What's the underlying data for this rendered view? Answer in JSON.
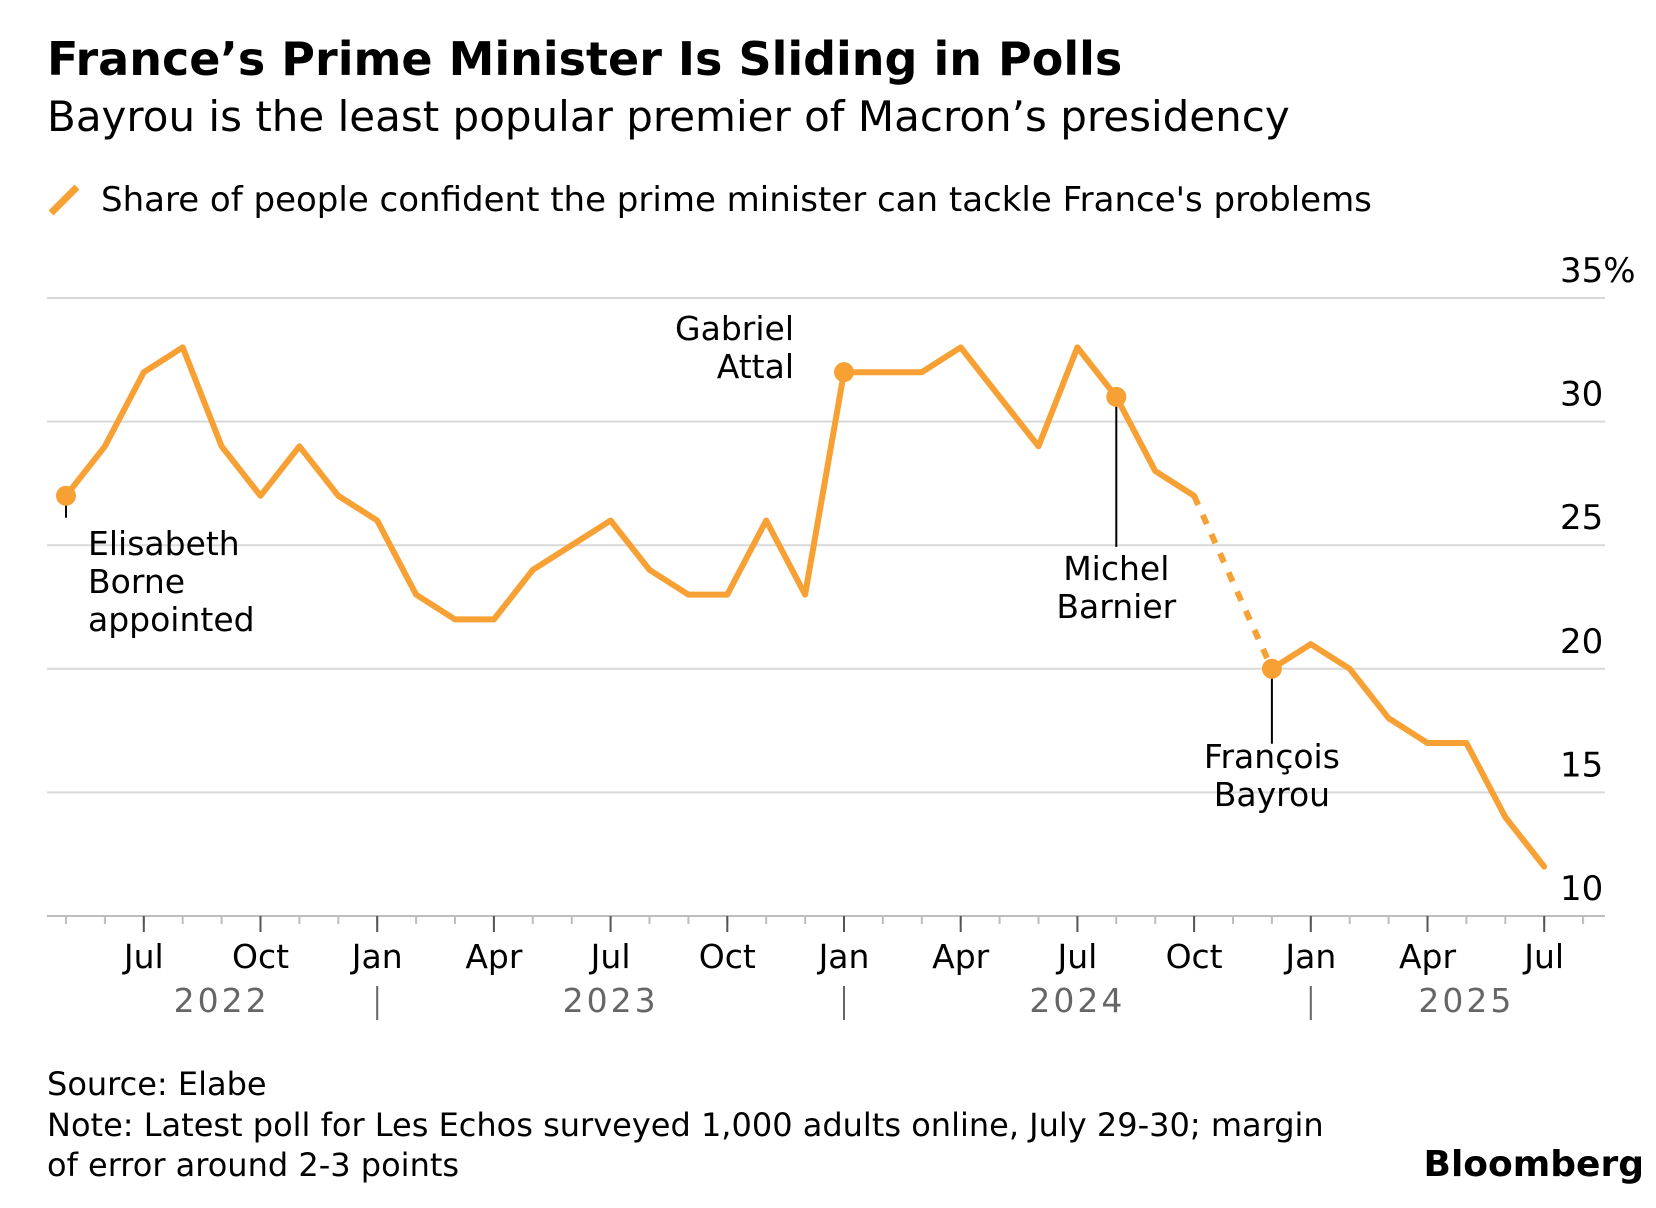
{
  "header": {
    "title": "France’s Prime Minister Is Sliding in Polls",
    "subtitle": "Bayrou is the least popular premier of Macron’s presidency"
  },
  "legend": {
    "label": "Share of people confident the prime minister can tackle France's problems",
    "color": "#f7a135"
  },
  "footer": {
    "source": "Source: Elabe",
    "note": "Note: Latest poll for Les Echos surveyed 1,000 adults online, July 29-30; margin of error around 2-3 points",
    "brand": "Bloomberg"
  },
  "chart_data": {
    "type": "line",
    "x_start": "2022-05",
    "x_end": "2025-08",
    "ylim": [
      10,
      35
    ],
    "y_ticks": [
      10,
      15,
      20,
      25,
      30,
      35
    ],
    "y_tick_labels": [
      "10",
      "15",
      "20",
      "25",
      "30",
      "35%"
    ],
    "grid": true,
    "month_ticks": [
      {
        "date": "2022-07",
        "label": "Jul"
      },
      {
        "date": "2022-10",
        "label": "Oct"
      },
      {
        "date": "2023-01",
        "label": "Jan"
      },
      {
        "date": "2023-04",
        "label": "Apr"
      },
      {
        "date": "2023-07",
        "label": "Jul"
      },
      {
        "date": "2023-10",
        "label": "Oct"
      },
      {
        "date": "2024-01",
        "label": "Jan"
      },
      {
        "date": "2024-04",
        "label": "Apr"
      },
      {
        "date": "2024-07",
        "label": "Jul"
      },
      {
        "date": "2024-10",
        "label": "Oct"
      },
      {
        "date": "2025-01",
        "label": "Jan"
      },
      {
        "date": "2025-04",
        "label": "Apr"
      },
      {
        "date": "2025-07",
        "label": "Jul"
      }
    ],
    "year_labels": [
      {
        "label": "2022",
        "center": "2022-09"
      },
      {
        "label": "2023",
        "center": "2023-07"
      },
      {
        "label": "2024",
        "center": "2024-07"
      },
      {
        "label": "2025",
        "center": "2025-05"
      }
    ],
    "year_separators": [
      "2023-01",
      "2024-01",
      "2025-01"
    ],
    "series": [
      {
        "color": "#f7a135",
        "points": [
          [
            "2022-05",
            27
          ],
          [
            "2022-06",
            29
          ],
          [
            "2022-07",
            32
          ],
          [
            "2022-08",
            33
          ],
          [
            "2022-09",
            29
          ],
          [
            "2022-10",
            27
          ],
          [
            "2022-11",
            29
          ],
          [
            "2022-12",
            27
          ],
          [
            "2023-01",
            26
          ],
          [
            "2023-02",
            23
          ],
          [
            "2023-03",
            22
          ],
          [
            "2023-04",
            22
          ],
          [
            "2023-05",
            24
          ],
          [
            "2023-06",
            25
          ],
          [
            "2023-07",
            26
          ],
          [
            "2023-08",
            24
          ],
          [
            "2023-09",
            23
          ],
          [
            "2023-10",
            23
          ],
          [
            "2023-11",
            26
          ],
          [
            "2023-12",
            23
          ],
          [
            "2024-01",
            32
          ],
          [
            "2024-02",
            32
          ],
          [
            "2024-03",
            32
          ],
          [
            "2024-04",
            33
          ],
          [
            "2024-05",
            31
          ],
          [
            "2024-06",
            29
          ],
          [
            "2024-07",
            33
          ],
          [
            "2024-08",
            31
          ],
          [
            "2024-09",
            28
          ],
          [
            "2024-10",
            27
          ],
          [
            "2024-12",
            20
          ],
          [
            "2025-01",
            21
          ],
          [
            "2025-02",
            20
          ],
          [
            "2025-03",
            18
          ],
          [
            "2025-04",
            17
          ],
          [
            "2025-05",
            17
          ],
          [
            "2025-06",
            14
          ],
          [
            "2025-07",
            12
          ]
        ],
        "dashed_segment": [
          "2024-10",
          "2024-12"
        ]
      }
    ],
    "annotations": [
      {
        "lines": [
          "Elisabeth",
          "Borne",
          "appointed"
        ],
        "date": "2022-05",
        "value": 27
      },
      {
        "lines": [
          "Gabriel",
          "Attal"
        ],
        "date": "2024-01",
        "value": 32
      },
      {
        "lines": [
          "Michel",
          "Barnier"
        ],
        "date": "2024-08",
        "value": 31
      },
      {
        "lines": [
          "François",
          "Bayrou"
        ],
        "date": "2024-12",
        "value": 20
      }
    ]
  }
}
